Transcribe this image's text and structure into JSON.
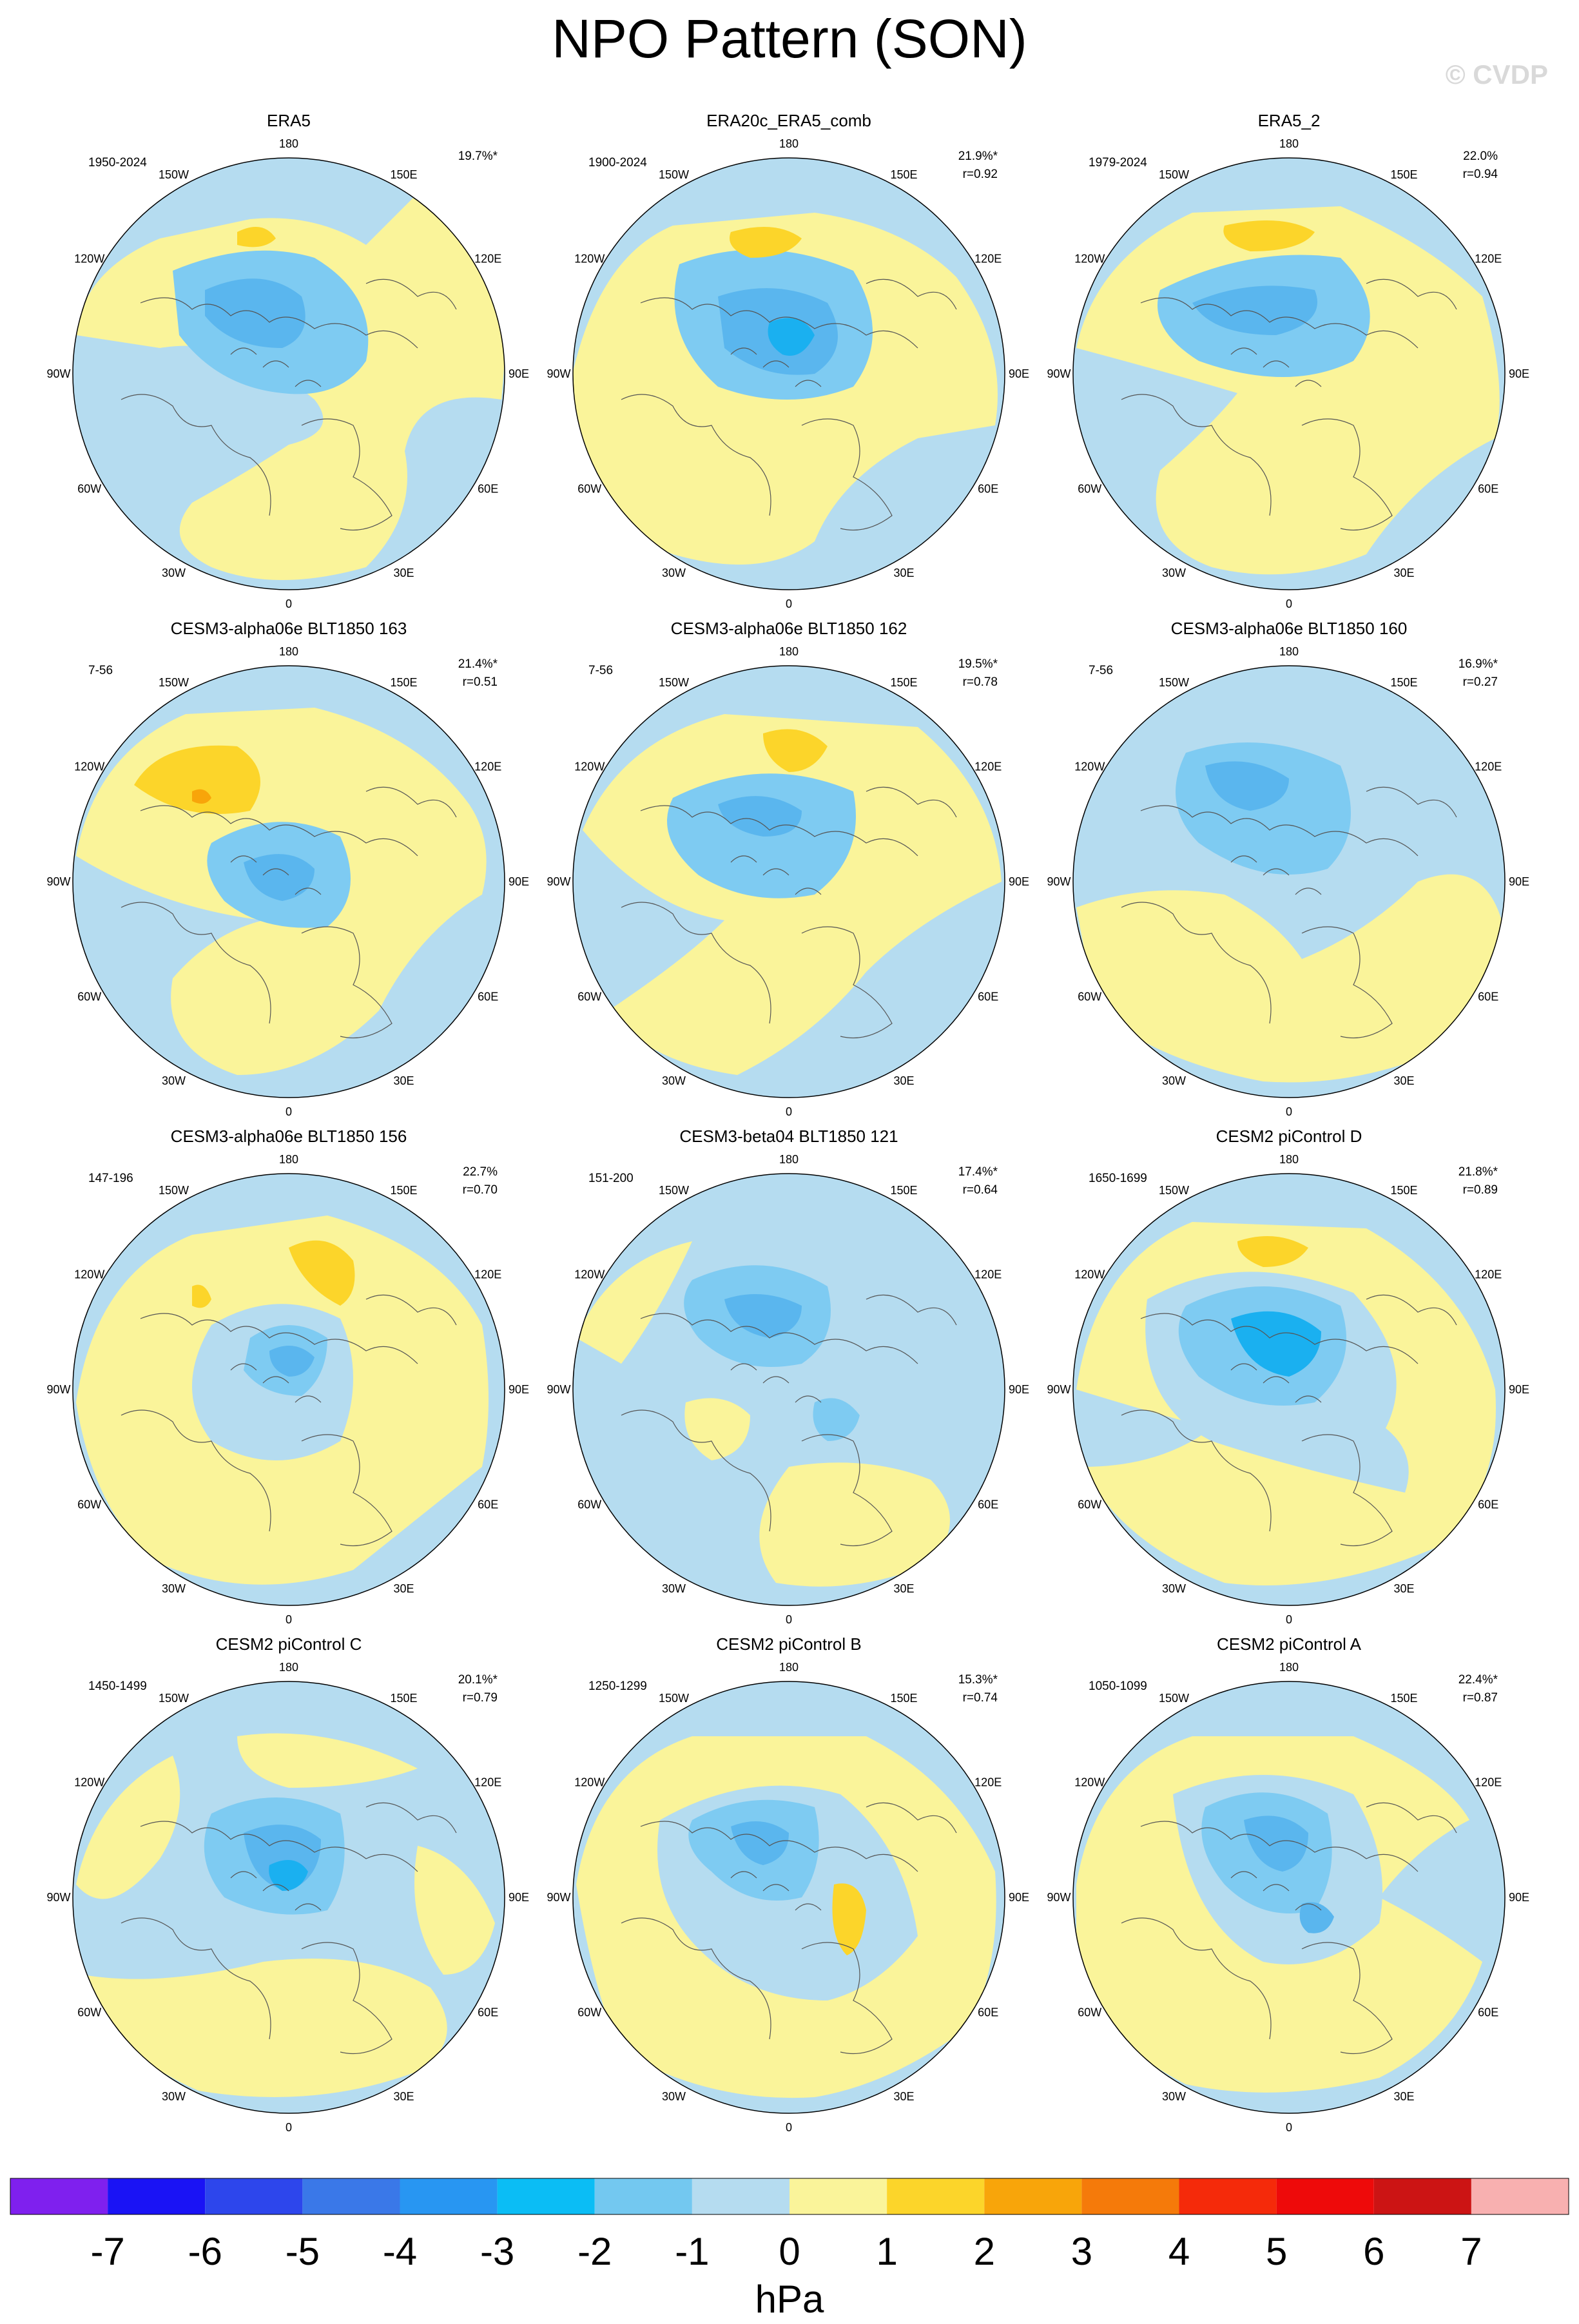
{
  "title": "NPO Pattern (SON)",
  "watermark": "© CVDP",
  "units": "hPa",
  "colors": {
    "blue_dark": "#7ecbf2",
    "blue_mid": "#5ab6ee",
    "blue_deep": "#1ab0f0",
    "blue_light": "#b5dcf0",
    "yellow": "#faf49a",
    "orange_light": "#fcd52a",
    "orange": "#f8a50a",
    "coast": "#555555"
  },
  "lon_labels": [
    "180",
    "150E",
    "120E",
    "90E",
    "60E",
    "30E",
    "0",
    "30W",
    "60W",
    "90W",
    "120W",
    "150W"
  ],
  "panels": [
    {
      "title": "ERA5",
      "period": "1950-2024",
      "pct": "19.7%*",
      "corr": ""
    },
    {
      "title": "ERA20c_ERA5_comb",
      "period": "1900-2024",
      "pct": "21.9%*",
      "corr": "r=0.92"
    },
    {
      "title": "ERA5_2",
      "period": "1979-2024",
      "pct": "22.0%",
      "corr": "r=0.94"
    },
    {
      "title": "CESM3-alpha06e BLT1850 163",
      "period": "7-56",
      "pct": "21.4%*",
      "corr": "r=0.51"
    },
    {
      "title": "CESM3-alpha06e BLT1850 162",
      "period": "7-56",
      "pct": "19.5%*",
      "corr": "r=0.78"
    },
    {
      "title": "CESM3-alpha06e BLT1850 160",
      "period": "7-56",
      "pct": "16.9%*",
      "corr": "r=0.27"
    },
    {
      "title": "CESM3-alpha06e BLT1850 156",
      "period": "147-196",
      "pct": "22.7%",
      "corr": "r=0.70"
    },
    {
      "title": "CESM3-beta04 BLT1850 121",
      "period": "151-200",
      "pct": "17.4%*",
      "corr": "r=0.64"
    },
    {
      "title": "CESM2 piControl D",
      "period": "1650-1699",
      "pct": "21.8%*",
      "corr": "r=0.89"
    },
    {
      "title": "CESM2 piControl C",
      "period": "1450-1499",
      "pct": "20.1%*",
      "corr": "r=0.79"
    },
    {
      "title": "CESM2 piControl B",
      "period": "1250-1299",
      "pct": "15.3%*",
      "corr": "r=0.74"
    },
    {
      "title": "CESM2 piControl A",
      "period": "1050-1099",
      "pct": "22.4%*",
      "corr": "r=0.87"
    }
  ],
  "colorbar": {
    "colors": [
      "#7f20ee",
      "#1a13f5",
      "#2d46ec",
      "#3a78e8",
      "#2896f2",
      "#0bbdf5",
      "#73c8f0",
      "#b5dcf0",
      "#faf49a",
      "#fcd52a",
      "#f8a50a",
      "#f57a0a",
      "#f52a0a",
      "#ee0a0a",
      "#cc1414",
      "#f8b0b0"
    ],
    "labels": [
      "-7",
      "-6",
      "-5",
      "-4",
      "-3",
      "-2",
      "-1",
      "0",
      "1",
      "2",
      "3",
      "4",
      "5",
      "6",
      "7"
    ]
  }
}
